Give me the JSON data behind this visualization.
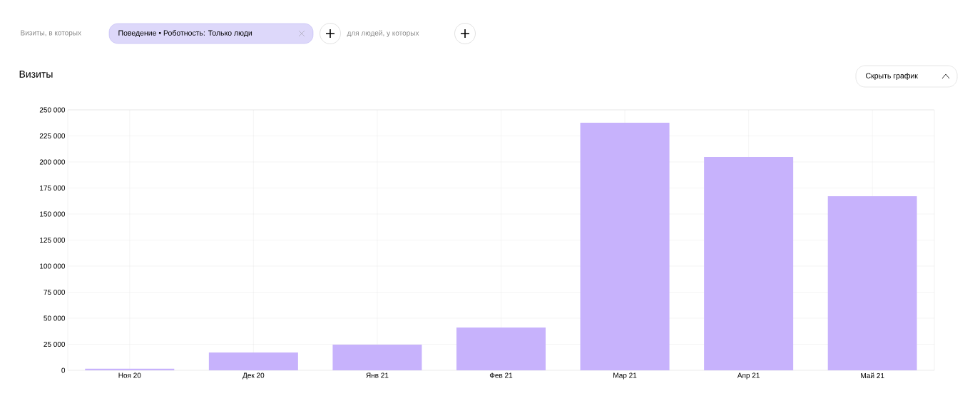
{
  "chart_data": {
    "type": "bar",
    "title": "Визиты",
    "annotations": [
      "Визиты, в которых",
      "Поведение • Роботность: Только люди",
      "для людей, у которых",
      "Скрыть график"
    ],
    "categories": [
      "Ноя 20",
      "Дек 20",
      "Янв 21",
      "Фев 21",
      "Мар 21",
      "Апр 21",
      "Май 21"
    ],
    "values": [
      1500,
      17100,
      24700,
      41100,
      237700,
      204800,
      167100
    ],
    "color": "#c7b2fc",
    "ylim": [
      0,
      250000
    ],
    "yticks": [
      0,
      {
        "value": 25000,
        "label": "25 000"
      },
      {
        "value": 50000,
        "label": "50 000"
      },
      {
        "value": 75000,
        "label": "75 000"
      },
      {
        "value": 100000,
        "label": "100 000"
      },
      {
        "value": 125000,
        "label": "125 000"
      },
      {
        "value": 150000,
        "label": "150 000"
      },
      {
        "value": 175000,
        "label": "175 000"
      },
      {
        "value": 200000,
        "label": "200 000"
      },
      {
        "value": 225000,
        "label": "225 000"
      },
      {
        "value": 250000,
        "label": "250 000"
      }
    ],
    "grid": true
  }
}
